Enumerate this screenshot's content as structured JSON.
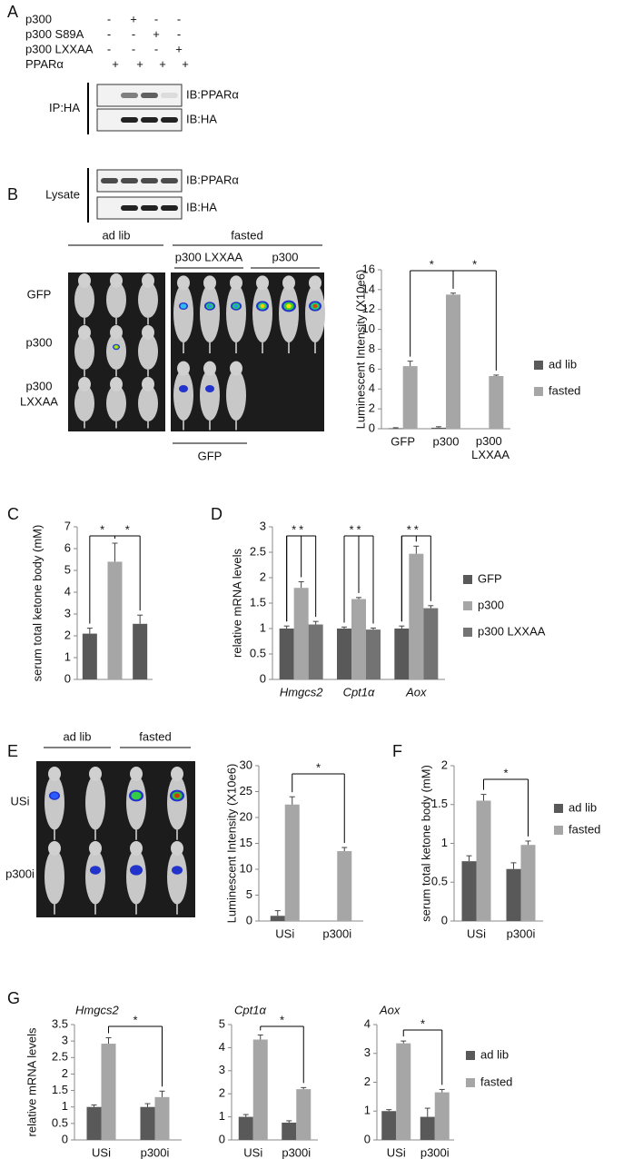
{
  "panels": [
    "A",
    "B",
    "C",
    "D",
    "E",
    "F",
    "G"
  ],
  "blot": {
    "conditions": [
      {
        "label": "p300",
        "marks": [
          "-",
          "+",
          "-",
          "-"
        ]
      },
      {
        "label": "p300 S89A",
        "marks": [
          "-",
          "-",
          "+",
          "-"
        ]
      },
      {
        "label": "p300 LXXAA",
        "marks": [
          "-",
          "-",
          "-",
          "+"
        ]
      },
      {
        "label": "PPARα",
        "marks": [
          "+",
          "+",
          "+",
          "+"
        ]
      }
    ],
    "sections": [
      {
        "label": "IP:HA",
        "blots": [
          "IB:PPARα",
          "IB:HA"
        ]
      },
      {
        "label": "Lysate",
        "blots": [
          "IB:PPARα",
          "IB:HA"
        ]
      }
    ]
  },
  "imaging_b": {
    "groups": [
      "ad lib",
      "fasted"
    ],
    "subgroups": [
      "p300 LXXAA",
      "p300"
    ],
    "rows": [
      "GFP",
      "p300",
      "p300",
      "LXXAA"
    ],
    "bottom": "GFP"
  },
  "imaging_e": {
    "groups": [
      "ad lib",
      "fasted"
    ],
    "rows": [
      "USi",
      "p300i"
    ]
  },
  "chart_data": [
    {
      "type": "bar",
      "y_label": "Luminescent Intensity (X10e6)",
      "categories": [
        "GFP",
        "p300",
        "p300 LXXAA"
      ],
      "series": [
        {
          "name": "ad lib",
          "color": "#595959",
          "values": [
            0.05,
            0.1,
            null
          ],
          "errors": [
            0.05,
            0.1,
            null
          ]
        },
        {
          "name": "fasted",
          "color": "#a6a6a6",
          "values": [
            6.3,
            13.5,
            5.3
          ],
          "errors": [
            0.5,
            0.15,
            0.1
          ]
        }
      ],
      "ylim": [
        0,
        16
      ],
      "yticks": [
        0,
        2,
        4,
        6,
        8,
        10,
        12,
        14,
        16
      ],
      "legend": "right",
      "annotations": [
        "*",
        "*"
      ]
    },
    {
      "type": "bar",
      "y_label": "serum total ketone body (mM)",
      "values": [
        2.1,
        5.4,
        2.55
      ],
      "errors": [
        0.25,
        0.85,
        0.4
      ],
      "colors": [
        "#595959",
        "#a6a6a6",
        "#595959"
      ],
      "ylim": [
        0,
        7
      ],
      "yticks": [
        0,
        1,
        2,
        3,
        4,
        5,
        6,
        7
      ],
      "annotations": [
        "*",
        "*"
      ]
    },
    {
      "type": "bar",
      "y_label": "relative mRNA levels",
      "categories": [
        "Hmgcs2",
        "Cpt1α",
        "Aox"
      ],
      "series": [
        {
          "name": "GFP",
          "color": "#595959",
          "values": [
            1,
            1,
            1
          ],
          "errors": [
            0.05,
            0.03,
            0.05
          ]
        },
        {
          "name": "p300",
          "color": "#a6a6a6",
          "values": [
            1.8,
            1.58,
            2.47
          ],
          "errors": [
            0.12,
            0.03,
            0.15
          ]
        },
        {
          "name": "p300 LXXAA",
          "color": "#737373",
          "values": [
            1.08,
            0.98,
            1.4
          ],
          "errors": [
            0.06,
            0.03,
            0.05
          ]
        }
      ],
      "ylim": [
        0,
        3
      ],
      "yticks": [
        0,
        0.5,
        1,
        1.5,
        2,
        2.5,
        3
      ],
      "legend": "right",
      "annotations": [
        "*",
        "*",
        "*",
        "*",
        "*",
        "*"
      ]
    },
    {
      "type": "bar",
      "y_label": "Luminescent Intensity (X10e6)",
      "categories": [
        "USi",
        "p300i"
      ],
      "series": [
        {
          "name": "ad lib",
          "color": "#595959",
          "values": [
            1,
            null
          ],
          "errors": [
            1,
            null
          ]
        },
        {
          "name": "fasted",
          "color": "#a6a6a6",
          "values": [
            22.5,
            13.5
          ],
          "errors": [
            1.5,
            0.7
          ]
        }
      ],
      "ylim": [
        0,
        30
      ],
      "yticks": [
        0,
        5,
        10,
        15,
        20,
        25,
        30
      ],
      "annotations": [
        "*"
      ]
    },
    {
      "type": "bar",
      "y_label": "serum total ketone body (mM)",
      "categories": [
        "USi",
        "p300i"
      ],
      "series": [
        {
          "name": "ad lib",
          "color": "#595959",
          "values": [
            0.77,
            0.67
          ],
          "errors": [
            0.07,
            0.08
          ]
        },
        {
          "name": "fasted",
          "color": "#a6a6a6",
          "values": [
            1.55,
            0.98
          ],
          "errors": [
            0.08,
            0.05
          ]
        }
      ],
      "ylim": [
        0,
        2
      ],
      "yticks": [
        0,
        0.5,
        1,
        1.5,
        2
      ],
      "legend": "right",
      "annotations": [
        "*"
      ]
    },
    {
      "type": "bar",
      "title": "Hmgcs2",
      "y_label": "relative mRNA levels",
      "categories": [
        "USi",
        "p300i"
      ],
      "series": [
        {
          "name": "ad lib",
          "color": "#595959",
          "values": [
            1,
            1
          ],
          "errors": [
            0.06,
            0.1
          ]
        },
        {
          "name": "fasted",
          "color": "#a6a6a6",
          "values": [
            2.92,
            1.3
          ],
          "errors": [
            0.18,
            0.18
          ]
        }
      ],
      "ylim": [
        0,
        3.5
      ],
      "yticks": [
        0,
        0.5,
        1,
        1.5,
        2,
        2.5,
        3,
        3.5
      ],
      "annotations": [
        "*"
      ]
    },
    {
      "type": "bar",
      "title": "Cpt1α",
      "categories": [
        "USi",
        "p300i"
      ],
      "series": [
        {
          "name": "ad lib",
          "color": "#595959",
          "values": [
            1,
            0.75
          ],
          "errors": [
            0.1,
            0.08
          ]
        },
        {
          "name": "fasted",
          "color": "#a6a6a6",
          "values": [
            4.35,
            2.2
          ],
          "errors": [
            0.2,
            0.07
          ]
        }
      ],
      "ylim": [
        0,
        5
      ],
      "yticks": [
        0,
        1,
        2,
        3,
        4,
        5
      ],
      "annotations": [
        "*"
      ]
    },
    {
      "type": "bar",
      "title": "Aox",
      "categories": [
        "USi",
        "p300i"
      ],
      "series": [
        {
          "name": "ad lib",
          "color": "#595959",
          "values": [
            1,
            0.8
          ],
          "errors": [
            0.05,
            0.3
          ]
        },
        {
          "name": "fasted",
          "color": "#a6a6a6",
          "values": [
            3.35,
            1.65
          ],
          "errors": [
            0.08,
            0.1
          ]
        }
      ],
      "ylim": [
        0,
        4
      ],
      "yticks": [
        0,
        1,
        2,
        3,
        4
      ],
      "legend": "right",
      "annotations": [
        "*"
      ]
    }
  ]
}
